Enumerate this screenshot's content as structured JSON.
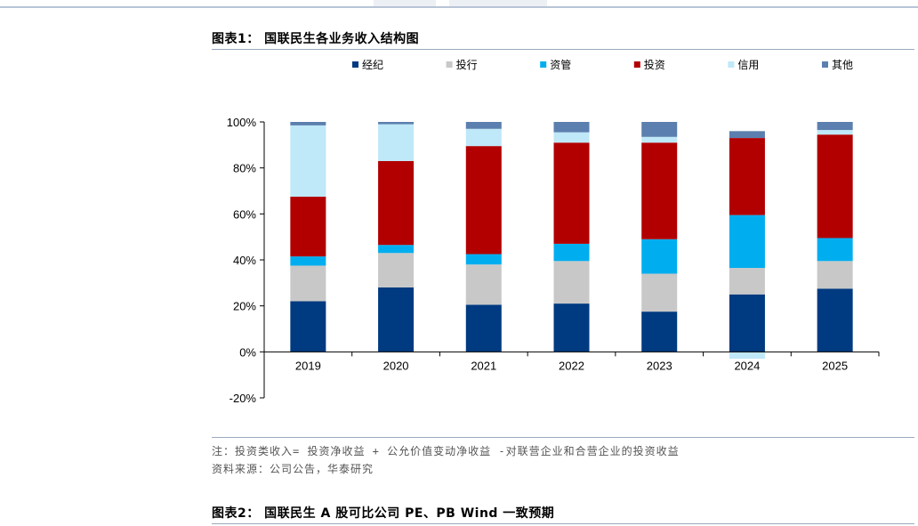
{
  "figure1": {
    "title": "图表1：  国联民生各业务收入结构图"
  },
  "chart_data": {
    "type": "bar",
    "stacked": true,
    "categories": [
      "2019",
      "2020",
      "2021",
      "2022",
      "2023",
      "2024",
      "2025"
    ],
    "series": [
      {
        "name": "经纪",
        "color": "#003a80",
        "values": [
          22,
          28,
          20.5,
          21,
          17.5,
          25,
          27.5
        ]
      },
      {
        "name": "投行",
        "color": "#c8c8c8",
        "values": [
          15.5,
          15,
          17.5,
          18.5,
          16.5,
          11.5,
          12
        ]
      },
      {
        "name": "资管",
        "color": "#00aeef",
        "values": [
          4,
          3.5,
          4.5,
          7.5,
          15,
          23,
          10
        ]
      },
      {
        "name": "投资",
        "color": "#b20000",
        "values": [
          26,
          36.5,
          47,
          44,
          42,
          33.5,
          45
        ]
      },
      {
        "name": "信用",
        "color": "#bfe8f8",
        "values": [
          31,
          16,
          7.5,
          4.5,
          2.5,
          -3,
          2
        ]
      },
      {
        "name": "其他",
        "color": "#5b7fae",
        "values": [
          1.5,
          1,
          3,
          4.5,
          6.5,
          3,
          3.5
        ]
      }
    ],
    "ylim": [
      -20,
      100
    ],
    "yticks": [
      -20,
      0,
      20,
      40,
      60,
      80,
      100
    ],
    "ytick_labels": [
      "-20%",
      "0%",
      "20%",
      "40%",
      "60%",
      "80%",
      "100%"
    ],
    "legend_position": "top",
    "grid": false,
    "title": "",
    "xlabel": "",
    "ylabel": ""
  },
  "notes": {
    "note": "注：投资类收入= 投资净收益 + 公允价值变动净收益 -对联营企业和合营企业的投资收益",
    "source": "资料来源：公司公告，华泰研究"
  },
  "figure2": {
    "title": "图表2：  国联民生 A 股可比公司 PE、PB Wind 一致预期"
  }
}
